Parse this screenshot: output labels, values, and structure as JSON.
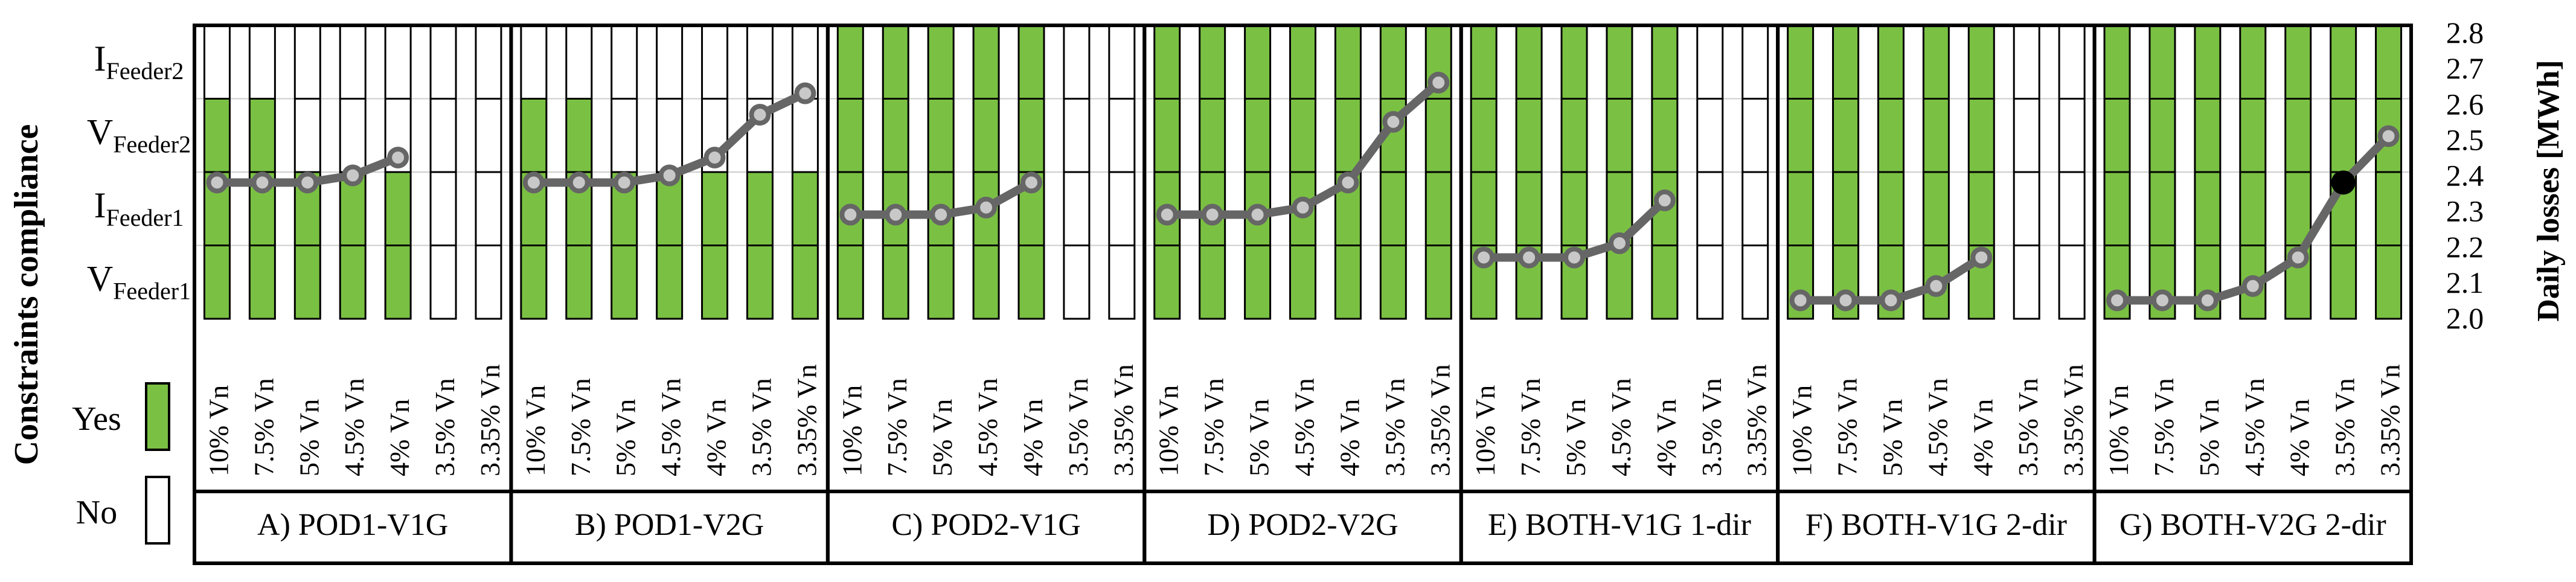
{
  "chart_data": {
    "type": "bar",
    "title": "",
    "ylabel_left": "Constraints compliance",
    "ylabel_right": "Daily losses [MWh]",
    "right_axis": {
      "ylim": [
        2.0,
        2.8
      ],
      "ticks": [
        "2.0",
        "2.1",
        "2.2",
        "2.3",
        "2.4",
        "2.5",
        "2.6",
        "2.7",
        "2.8"
      ]
    },
    "constraints": [
      {
        "main": "V",
        "sub": "Feeder1"
      },
      {
        "main": "I",
        "sub": "Feeder1"
      },
      {
        "main": "V",
        "sub": "Feeder2"
      },
      {
        "main": "I",
        "sub": "Feeder2"
      }
    ],
    "legend": [
      {
        "label": "Yes",
        "color": "#7ac143"
      },
      {
        "label": "No",
        "color": "#ffffff"
      }
    ],
    "categories": [
      "10% Vn",
      "7.5% Vn",
      "5% Vn",
      "4.5% Vn",
      "4% Vn",
      "3.5% Vn",
      "3.35% Vn"
    ],
    "panels": [
      {
        "label": "A) POD1-V1G",
        "compliance": [
          3,
          3,
          2,
          2,
          2,
          0,
          0
        ],
        "losses": [
          2.38,
          2.38,
          2.38,
          2.4,
          2.45,
          null,
          null
        ],
        "highlight": null
      },
      {
        "label": "B) POD1-V2G",
        "compliance": [
          3,
          3,
          2,
          2,
          2,
          2,
          2
        ],
        "losses": [
          2.38,
          2.38,
          2.38,
          2.4,
          2.45,
          2.57,
          2.63
        ],
        "highlight": null
      },
      {
        "label": "C) POD2-V1G",
        "compliance": [
          4,
          4,
          4,
          4,
          4,
          0,
          0
        ],
        "losses": [
          2.29,
          2.29,
          2.29,
          2.31,
          2.38,
          null,
          null
        ],
        "highlight": null
      },
      {
        "label": "D) POD2-V2G",
        "compliance": [
          4,
          4,
          4,
          4,
          4,
          4,
          4
        ],
        "losses": [
          2.29,
          2.29,
          2.29,
          2.31,
          2.38,
          2.55,
          2.66
        ],
        "highlight": null
      },
      {
        "label": "E) BOTH-V1G 1-dir",
        "compliance": [
          4,
          4,
          4,
          4,
          4,
          0,
          0
        ],
        "losses": [
          2.17,
          2.17,
          2.17,
          2.21,
          2.33,
          null,
          null
        ],
        "highlight": null
      },
      {
        "label": "F) BOTH-V1G 2-dir",
        "compliance": [
          4,
          4,
          4,
          4,
          4,
          0,
          0
        ],
        "losses": [
          2.05,
          2.05,
          2.05,
          2.09,
          2.17,
          null,
          null
        ],
        "highlight": null
      },
      {
        "label": "G) BOTH-V2G 2-dir",
        "compliance": [
          4,
          4,
          4,
          4,
          4,
          4,
          4
        ],
        "losses": [
          2.05,
          2.05,
          2.05,
          2.09,
          2.17,
          2.38,
          2.51
        ],
        "highlight": 5
      }
    ]
  }
}
